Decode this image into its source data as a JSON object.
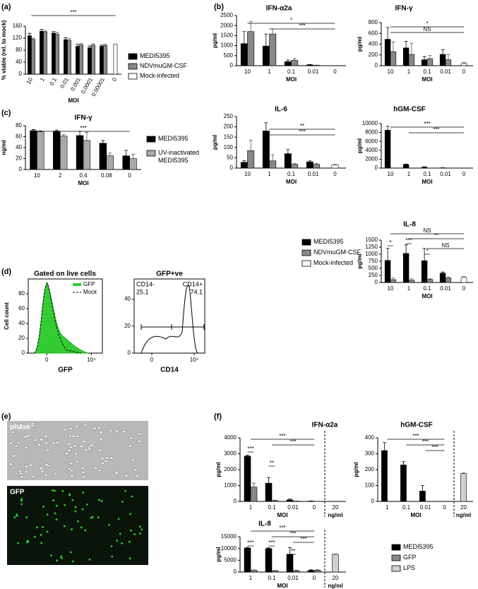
{
  "panel_labels": [
    "(a)",
    "(b)",
    "(c)",
    "(d)",
    "(e)",
    "(f)"
  ],
  "images": {
    "labels": [
      "phase",
      "GFP"
    ]
  },
  "chart_data": [
    {
      "type": "bar",
      "ylabel": "% viable (rel. to mock)",
      "xlabel": "MOI",
      "categories": [
        "10",
        "1",
        "0.1",
        "0.01",
        "0.001",
        "0.0001",
        "0.00001",
        "0"
      ],
      "series": [
        {
          "name": "MEDI5395",
          "color": "#000000",
          "values": [
            128,
            143,
            137,
            115,
            93,
            88,
            93,
            null
          ],
          "errors": [
            8,
            6,
            5,
            6,
            7,
            6,
            4,
            null
          ]
        },
        {
          "name": "NDVmuGM-CSF",
          "color": "#888888",
          "values": [
            116,
            141,
            133,
            113,
            98,
            97,
            96,
            null
          ],
          "errors": [
            4,
            3,
            6,
            5,
            5,
            4,
            4,
            null
          ]
        },
        {
          "name": "Mock-infected",
          "color": "#ffffff",
          "values": [
            null,
            null,
            null,
            null,
            null,
            null,
            null,
            100
          ],
          "errors": [
            null,
            null,
            null,
            null,
            null,
            null,
            null,
            null
          ]
        }
      ],
      "ylim": [
        0,
        160
      ],
      "yticks": [
        0,
        40,
        80,
        120,
        160
      ],
      "annotations": [
        "***"
      ]
    },
    {
      "type": "bar",
      "title": "IFN-α2a",
      "ylabel": "pg/ml",
      "xlabel": "MOI",
      "categories": [
        "10",
        "1",
        "0.1",
        "0.01",
        "0"
      ],
      "series": [
        {
          "name": "MEDI5395",
          "color": "#000000",
          "values": [
            1100,
            980,
            200,
            40,
            null
          ],
          "errors": [
            600,
            600,
            80,
            20,
            null
          ]
        },
        {
          "name": "NDVmuGM-CSF",
          "color": "#888888",
          "values": [
            1700,
            1580,
            270,
            20,
            null
          ],
          "errors": [
            500,
            250,
            80,
            10,
            null
          ]
        },
        {
          "name": "Mock-infected",
          "color": "#ffffff",
          "values": [
            null,
            null,
            null,
            null,
            5
          ],
          "errors": [
            null,
            null,
            null,
            null,
            null
          ]
        }
      ],
      "ylim": [
        0,
        2500
      ],
      "yticks": [
        0,
        500,
        1000,
        1500,
        2000,
        2500
      ],
      "annotations": [
        "*",
        "***"
      ]
    },
    {
      "type": "bar",
      "title": "IFN-γ",
      "ylabel": "pg/ml",
      "xlabel": "MOI",
      "categories": [
        "10",
        "1",
        "0.1",
        "0.01",
        "0"
      ],
      "series": [
        {
          "color": "#000000",
          "values": [
            490,
            330,
            110,
            210,
            null
          ],
          "errors": [
            220,
            120,
            60,
            90,
            null
          ]
        },
        {
          "color": "#888888",
          "values": [
            260,
            210,
            130,
            110,
            null
          ],
          "errors": [
            180,
            200,
            60,
            100,
            null
          ]
        },
        {
          "color": "#ffffff",
          "values": [
            null,
            null,
            null,
            null,
            40
          ],
          "errors": [
            null,
            null,
            null,
            null,
            20
          ]
        }
      ],
      "ylim": [
        0,
        800
      ],
      "yticks": [
        0,
        200,
        400,
        600,
        800
      ],
      "annotations": [
        "*",
        "NS"
      ]
    },
    {
      "type": "bar",
      "title": "IL-6",
      "ylabel": "pg/ml",
      "xlabel": "MOI",
      "categories": [
        "10",
        "1",
        "0.1",
        "0.01",
        "0"
      ],
      "series": [
        {
          "color": "#000000",
          "values": [
            28,
            180,
            70,
            30,
            null
          ],
          "errors": [
            8,
            40,
            20,
            5,
            null
          ]
        },
        {
          "color": "#888888",
          "values": [
            85,
            35,
            18,
            18,
            null
          ],
          "errors": [
            50,
            30,
            5,
            5,
            null
          ]
        },
        {
          "color": "#ffffff",
          "values": [
            null,
            null,
            null,
            null,
            15
          ],
          "errors": [
            null,
            null,
            null,
            null,
            3
          ]
        }
      ],
      "ylim": [
        0,
        250
      ],
      "yticks": [
        0,
        50,
        100,
        150,
        200,
        250
      ],
      "annotations": [
        "**",
        "***"
      ]
    },
    {
      "type": "bar",
      "title": "hGM-CSF",
      "ylabel": "pg/ml",
      "xlabel": "MOI",
      "categories": [
        "10",
        "1",
        "0.1",
        "0.01",
        "0"
      ],
      "series": [
        {
          "color": "#000000",
          "values": [
            8500,
            800,
            200,
            50,
            null
          ],
          "errors": [
            900,
            100,
            100,
            30,
            null
          ]
        },
        {
          "color": "#888888",
          "values": [
            20,
            10,
            10,
            10,
            null
          ],
          "errors": [
            null,
            null,
            null,
            null,
            null
          ]
        },
        {
          "color": "#ffffff",
          "values": [
            null,
            null,
            null,
            null,
            10
          ],
          "errors": [
            null,
            null,
            null,
            null,
            null
          ]
        }
      ],
      "ylim": [
        0,
        10000
      ],
      "yticks": [
        0,
        2000,
        4000,
        6000,
        8000,
        10000
      ],
      "annotations": [
        "***",
        "***"
      ]
    },
    {
      "type": "bar",
      "title": "IL-8",
      "ylabel": "pg/ml",
      "xlabel": "MOI",
      "categories": [
        "10",
        "1",
        "0.1",
        "0.01",
        "0"
      ],
      "series": [
        {
          "color": "#000000",
          "values": [
            780,
            1030,
            770,
            330,
            null
          ],
          "errors": [
            430,
            300,
            440,
            40,
            null
          ]
        },
        {
          "color": "#888888",
          "values": [
            100,
            80,
            110,
            160,
            null
          ],
          "errors": [
            60,
            50,
            20,
            40,
            null
          ]
        },
        {
          "color": "#ffffff",
          "values": [
            null,
            null,
            null,
            null,
            180
          ],
          "errors": [
            null,
            null,
            null,
            null,
            30
          ]
        }
      ],
      "ylim": [
        0,
        1500
      ],
      "yticks": [
        0,
        250,
        500,
        750,
        1000,
        1250,
        1500
      ],
      "annotations": [
        "*",
        "***",
        "*",
        "NS",
        "**",
        "NS"
      ]
    },
    {
      "type": "bar",
      "title": "IFN-γ",
      "ylabel": "ng/ml",
      "xlabel": "MOI",
      "categories": [
        "10",
        "2",
        "0.4",
        "0.08",
        "0"
      ],
      "series": [
        {
          "name": "MEDI5395",
          "color": "#000000",
          "values": [
            71,
            70,
            62,
            48,
            25
          ],
          "errors": [
            2,
            2,
            8,
            5,
            10
          ]
        },
        {
          "name": "UV-inactivated MEDI5395",
          "color": "#aaaaaa",
          "values": [
            69,
            61,
            53,
            25,
            20
          ],
          "errors": [
            2,
            3,
            15,
            5,
            8
          ]
        }
      ],
      "ylim": [
        0,
        80
      ],
      "yticks": [
        0,
        20,
        40,
        60,
        80
      ],
      "annotations": [
        "***"
      ]
    },
    {
      "type": "flow-histogram",
      "title": "Gated on live cells",
      "ylabel": "Cell count",
      "xlabel": "GFP",
      "series": [
        {
          "name": "GFP",
          "color": "#33cc33"
        },
        {
          "name": "Mock",
          "color": "#000000"
        }
      ],
      "ylim": [
        0,
        100
      ],
      "yticks": [
        0,
        20,
        40,
        60,
        80
      ],
      "xticks": [
        0,
        {
          "value": 10000,
          "label": "10⁴"
        }
      ]
    },
    {
      "type": "flow-histogram",
      "title": "GFP+ve",
      "xlabel": "CD14",
      "series": [
        {
          "color": "#000000"
        }
      ],
      "ylim": [
        0,
        55
      ],
      "yticks": [
        0,
        20,
        40
      ],
      "xticks": [
        0,
        {
          "value": 10000,
          "label": "10⁴"
        }
      ],
      "gates": [
        {
          "label": "CD14-",
          "value": 25.1
        },
        {
          "label": "CD14+",
          "value": 74.1
        }
      ]
    },
    {
      "type": "bar",
      "title": "IFN-α2a",
      "ylabel": "pg/ml",
      "xlabel": "MOI",
      "xlabel2": "ng/ml",
      "categories": [
        "1",
        "0.1",
        "0.01",
        "0",
        "20"
      ],
      "series": [
        {
          "name": "MEDI5395",
          "color": "#000000",
          "values": [
            2850,
            1150,
            100,
            20,
            null
          ],
          "errors": [
            60,
            350,
            50,
            10,
            null
          ]
        },
        {
          "name": "GFP",
          "color": "#888888",
          "values": [
            900,
            50,
            20,
            10,
            null
          ],
          "errors": [
            250,
            30,
            10,
            5,
            null
          ]
        },
        {
          "name": "LPS",
          "color": "#d0d0d0",
          "values": [
            null,
            null,
            null,
            null,
            0
          ],
          "errors": [
            null,
            null,
            null,
            null,
            null
          ]
        }
      ],
      "ylim": [
        0,
        4000
      ],
      "yticks": [
        0,
        1000,
        2000,
        3000,
        4000
      ],
      "annotations": [
        "***",
        "**",
        "***",
        "***"
      ]
    },
    {
      "type": "bar",
      "title": "hGM-CSF",
      "ylabel": "pg/ml",
      "xlabel": "MOI",
      "xlabel2": "ng/ml",
      "categories": [
        "1",
        "0.1",
        "0.01",
        "0",
        "20"
      ],
      "series": [
        {
          "color": "#000000",
          "values": [
            320,
            230,
            65,
            0,
            null
          ],
          "errors": [
            50,
            20,
            35,
            0,
            null
          ]
        },
        {
          "color": "#888888",
          "values": [
            0,
            0,
            0,
            0,
            null
          ],
          "errors": [
            null,
            null,
            null,
            null,
            null
          ]
        },
        {
          "color": "#d0d0d0",
          "values": [
            null,
            null,
            null,
            null,
            175
          ],
          "errors": [
            null,
            null,
            null,
            null,
            5
          ]
        }
      ],
      "ylim": [
        0,
        400
      ],
      "yticks": [
        0,
        100,
        200,
        300,
        400
      ],
      "annotations": [
        "***",
        "***",
        "***"
      ]
    },
    {
      "type": "bar",
      "title": "IL-8",
      "ylabel": "pg/ml",
      "xlabel": "MOI",
      "xlabel2": "ng/ml",
      "categories": [
        "1",
        "0.1",
        "0.01",
        "0",
        "20"
      ],
      "series": [
        {
          "color": "#000000",
          "values": [
            10200,
            10000,
            7600,
            700,
            null
          ],
          "errors": [
            300,
            300,
            2800,
            250,
            null
          ]
        },
        {
          "color": "#888888",
          "values": [
            800,
            600,
            600,
            800,
            null
          ],
          "errors": [
            100,
            100,
            200,
            200,
            null
          ]
        },
        {
          "color": "#d0d0d0",
          "values": [
            null,
            null,
            null,
            null,
            7500
          ],
          "errors": [
            null,
            null,
            null,
            null,
            200
          ]
        }
      ],
      "ylim": [
        0,
        15000
      ],
      "yticks": [
        0,
        5000,
        10000,
        15000
      ],
      "annotations": [
        "***",
        "***",
        "**",
        "***",
        "***",
        "***"
      ]
    }
  ]
}
